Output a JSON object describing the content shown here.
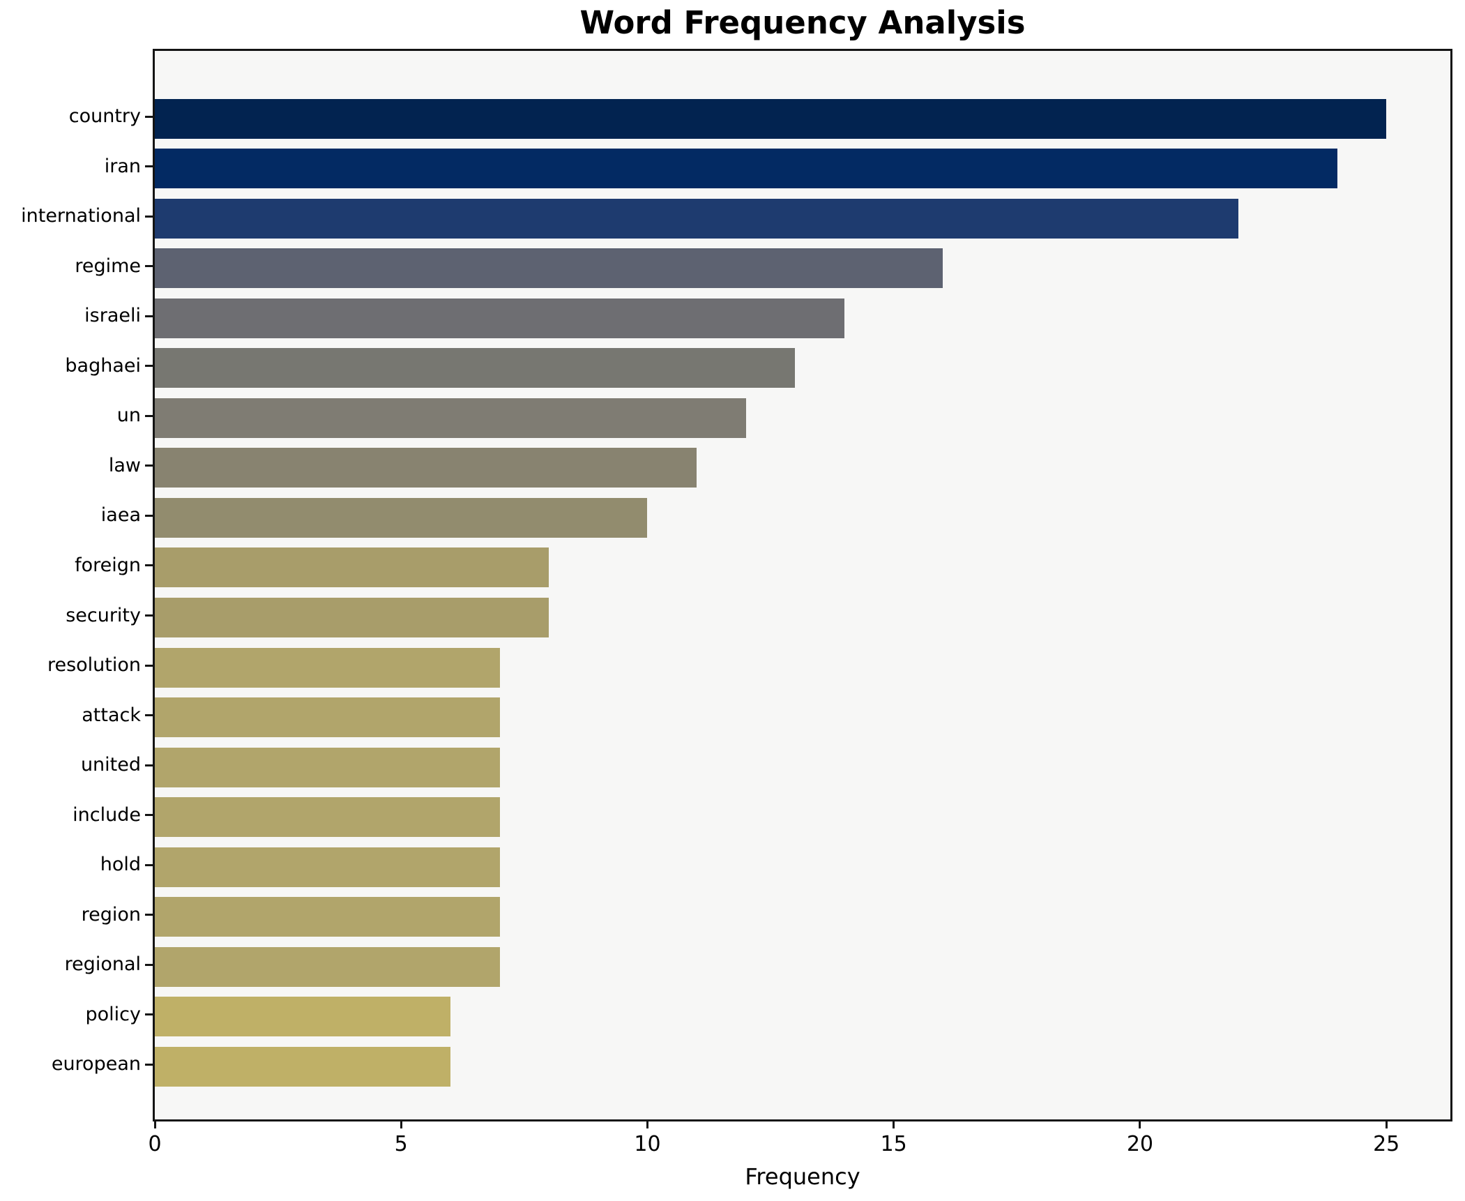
{
  "chart_data": {
    "type": "bar",
    "orientation": "horizontal",
    "title": "Word Frequency Analysis",
    "xlabel": "Frequency",
    "ylabel": "",
    "categories": [
      "country",
      "iran",
      "international",
      "regime",
      "israeli",
      "baghaei",
      "un",
      "law",
      "iaea",
      "foreign",
      "security",
      "resolution",
      "attack",
      "united",
      "include",
      "hold",
      "region",
      "regional",
      "policy",
      "european"
    ],
    "values": [
      25,
      24,
      22,
      16,
      14,
      13,
      12,
      11,
      10,
      8,
      8,
      7,
      7,
      7,
      7,
      7,
      7,
      7,
      6,
      6
    ],
    "bar_colors": [
      "#022350",
      "#032a63",
      "#1e3b6f",
      "#5d6271",
      "#6e6e72",
      "#777771",
      "#7f7c73",
      "#888370",
      "#928c6e",
      "#a89d6a",
      "#a89d6a",
      "#b1a56b",
      "#b1a56b",
      "#b1a56b",
      "#b1a56b",
      "#b1a56b",
      "#b1a56b",
      "#b1a56b",
      "#bfb067",
      "#bfb067"
    ],
    "xticks": [
      0,
      5,
      10,
      15,
      20,
      25
    ],
    "xlim": [
      0,
      26.3
    ],
    "grid": false,
    "legend_position": "none",
    "plot_background": "#f7f7f6",
    "figure_background": "#ffffff",
    "spine_color": "#141414"
  }
}
